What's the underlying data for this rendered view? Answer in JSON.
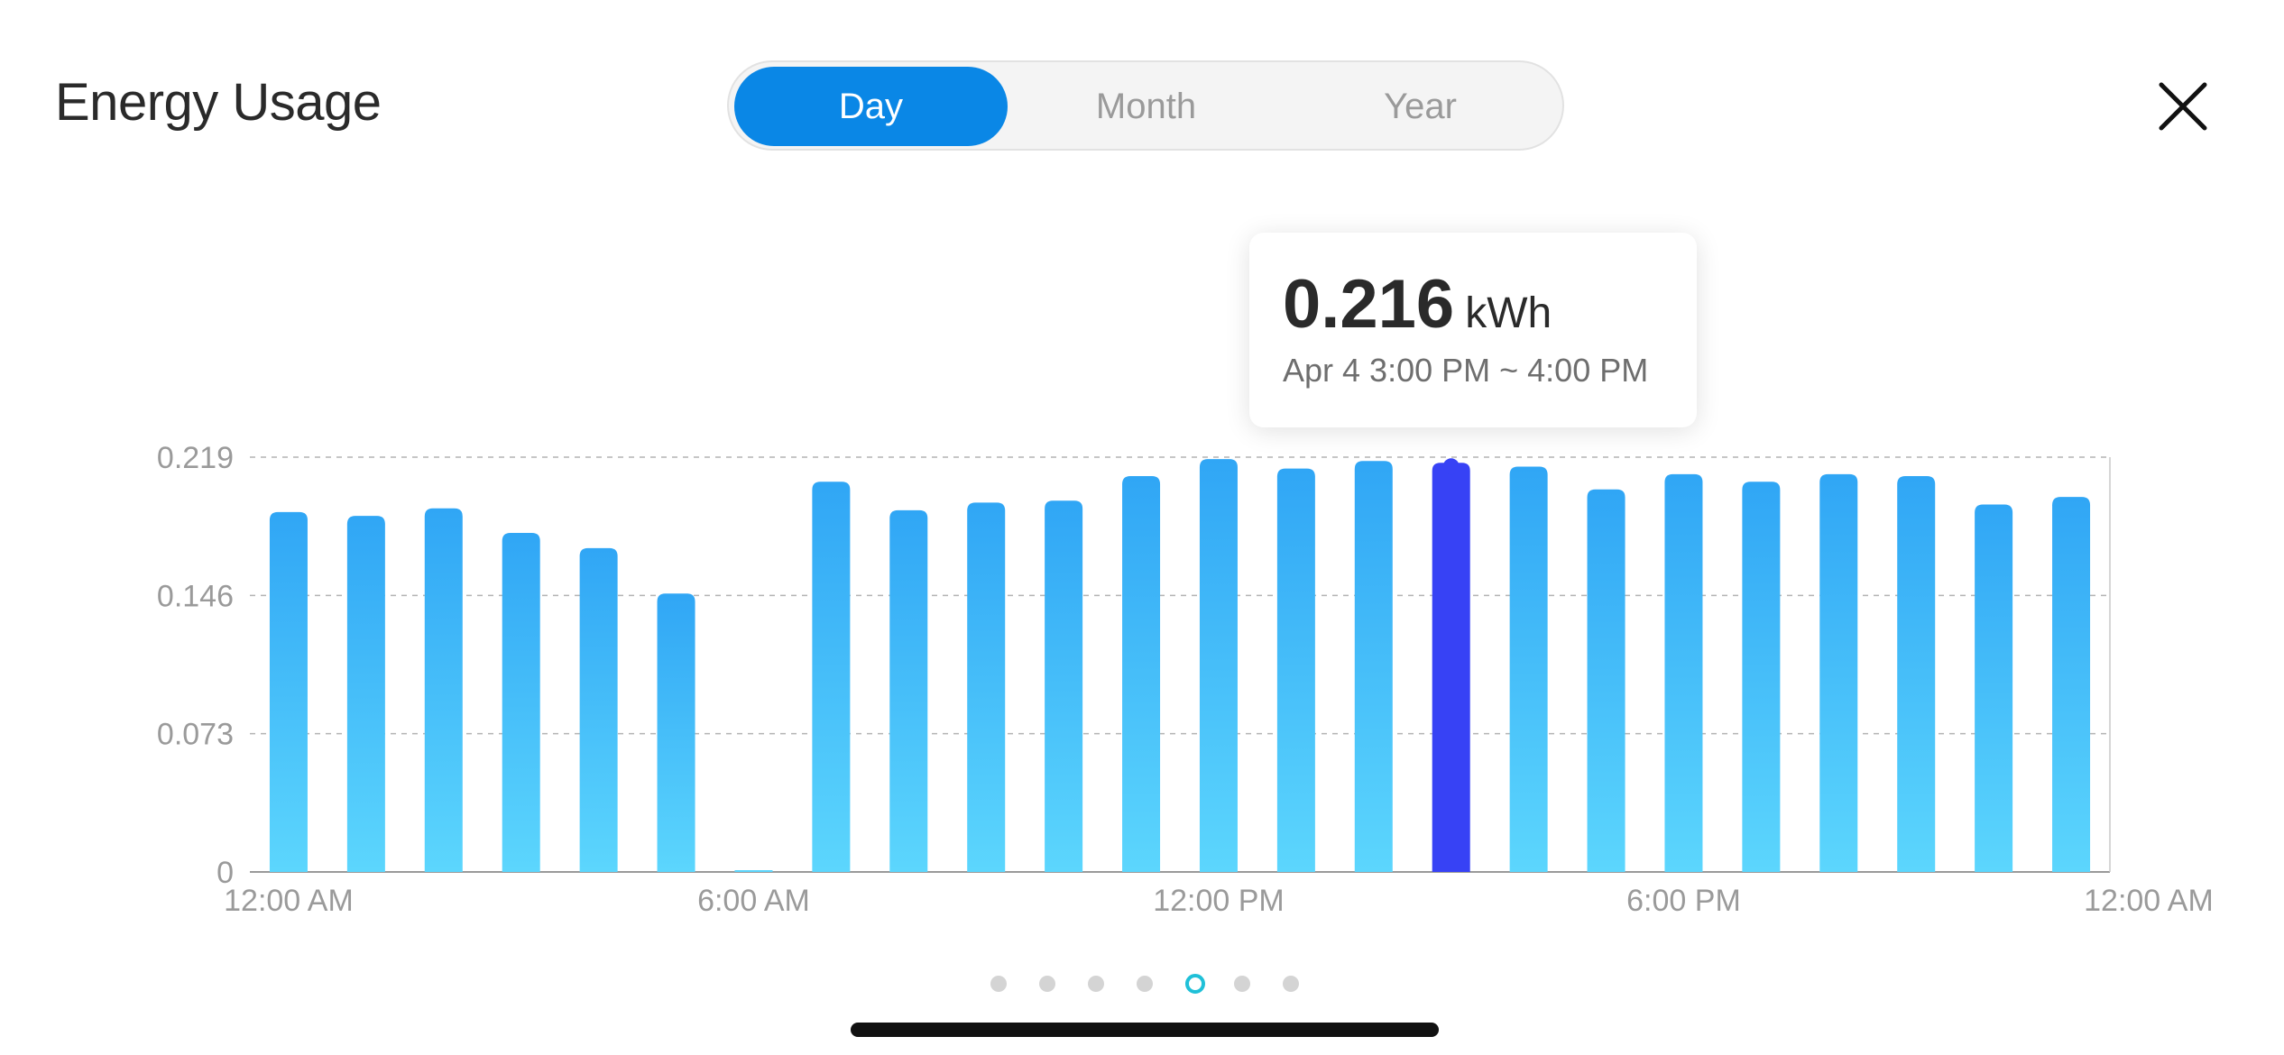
{
  "header": {
    "title": "Energy Usage"
  },
  "tabs": [
    {
      "label": "Day",
      "active": true
    },
    {
      "label": "Month",
      "active": false
    },
    {
      "label": "Year",
      "active": false
    }
  ],
  "close_icon": "close-icon",
  "tooltip": {
    "value": "0.216",
    "unit": "kWh",
    "range": "Apr 4 3:00 PM ~ 4:00 PM"
  },
  "pager": {
    "count": 7,
    "active_index": 4
  },
  "colors": {
    "accent": "#0a87e6",
    "bar_top": "#30a6f5",
    "bar_bottom": "#5cd6fd",
    "bar_selected": "#3742f5",
    "pager_active": "#1fc0d8"
  },
  "chart_data": {
    "type": "bar",
    "unit": "kWh",
    "categories": [
      "12:00 AM",
      "1:00 AM",
      "2:00 AM",
      "3:00 AM",
      "4:00 AM",
      "5:00 AM",
      "6:00 AM",
      "7:00 AM",
      "8:00 AM",
      "9:00 AM",
      "10:00 AM",
      "11:00 AM",
      "12:00 PM",
      "1:00 PM",
      "2:00 PM",
      "3:00 PM",
      "4:00 PM",
      "5:00 PM",
      "6:00 PM",
      "7:00 PM",
      "8:00 PM",
      "9:00 PM",
      "10:00 PM",
      "11:00 PM"
    ],
    "values": [
      0.19,
      0.188,
      0.192,
      0.179,
      0.171,
      0.147,
      0.0,
      0.206,
      0.191,
      0.195,
      0.196,
      0.209,
      0.218,
      0.213,
      0.217,
      0.216,
      0.214,
      0.202,
      0.21,
      0.206,
      0.21,
      0.209,
      0.194,
      0.198
    ],
    "selected_index": 15,
    "ylim": [
      0,
      0.219
    ],
    "y_ticks": [
      "0",
      "0.073",
      "0.146",
      "0.219"
    ],
    "x_tick_labels": [
      "12:00 AM",
      "6:00 AM",
      "12:00 PM",
      "6:00 PM",
      "12:00 AM"
    ],
    "x_tick_positions": [
      0,
      6,
      12,
      18,
      24
    ],
    "grid": true
  }
}
